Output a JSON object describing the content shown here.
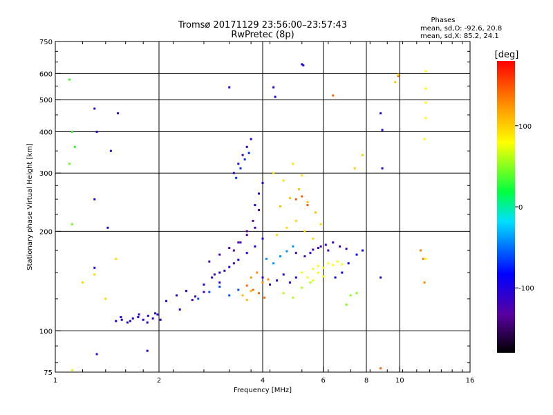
{
  "chart_data": {
    "type": "scatter",
    "title": "Tromsø 20171129 23:56:00–23:57:43",
    "subtitle": "RwPretec (8p)",
    "annotation": {
      "heading": "Phases",
      "line1": "mean, sd,O: -92.6, 20.8",
      "line2": "mean, sd,X:  85.2, 24.1"
    },
    "xlabel": "Frequency [MHz]",
    "ylabel": "Stationary phase Virtual Height [km]",
    "x_scale": "log",
    "y_scale": "log",
    "xlim": [
      1,
      16
    ],
    "ylim": [
      75,
      750
    ],
    "x_ticks": [
      1,
      2,
      4,
      6,
      8,
      10,
      16
    ],
    "x_grid": [
      2,
      4,
      6,
      8,
      10
    ],
    "y_ticks": [
      75,
      100,
      200,
      300,
      400,
      500,
      600,
      750
    ],
    "y_grid": [
      100,
      200,
      300,
      400,
      500,
      600
    ],
    "grid": true,
    "colorbar": {
      "label": "[deg]",
      "range": [
        -180,
        180
      ],
      "ticks": [
        100,
        0,
        -100
      ],
      "colormap": "rainbow: black-purple-blue-cyan-green-yellow-orange-red"
    },
    "point_groups": [
      {
        "x": [
          1.5,
          1.56,
          1.62,
          1.68,
          1.74,
          1.8,
          1.86,
          1.92,
          1.98
        ],
        "y": [
          107,
          108,
          106,
          109,
          110,
          108,
          111,
          109,
          112
        ],
        "phase": -100
      },
      {
        "x": [
          1.55,
          1.65,
          1.75,
          1.85,
          1.95,
          2.02
        ],
        "y": [
          110,
          107,
          112,
          106,
          113,
          108
        ],
        "phase": -110
      },
      {
        "x": [
          2.1,
          2.25,
          2.4,
          2.55,
          2.7,
          2.85,
          3.0
        ],
        "y": [
          123,
          128,
          132,
          127,
          138,
          145,
          140
        ],
        "phase": -105
      },
      {
        "x": [
          2.3,
          2.5,
          2.7,
          2.9,
          3.1,
          3.3
        ],
        "y": [
          116,
          124,
          131,
          148,
          152,
          160
        ],
        "phase": -120
      },
      {
        "x": [
          2.6,
          2.8,
          3.0,
          3.2,
          3.4
        ],
        "y": [
          125,
          131,
          136,
          128,
          133
        ],
        "phase": -60
      },
      {
        "x": [
          2.8,
          3.0,
          3.2,
          3.4,
          3.6,
          3.8
        ],
        "y": [
          162,
          170,
          178,
          185,
          195,
          205
        ],
        "phase": -125
      },
      {
        "x": [
          3.0,
          3.2,
          3.4,
          3.6,
          3.8,
          4.0
        ],
        "y": [
          150,
          156,
          164,
          172,
          180,
          190
        ],
        "phase": -95
      },
      {
        "x": [
          3.3,
          3.45,
          3.6,
          3.75,
          3.9
        ],
        "y": [
          175,
          185,
          200,
          215,
          232
        ],
        "phase": -130
      },
      {
        "x": [
          3.8,
          3.9,
          4.0
        ],
        "y": [
          240,
          260,
          280
        ],
        "phase": -100
      },
      {
        "x": [
          3.3,
          3.4,
          3.5,
          3.6,
          3.7
        ],
        "y": [
          300,
          320,
          340,
          360,
          380
        ],
        "phase": -105
      },
      {
        "x": [
          3.35,
          3.45,
          3.55,
          3.65
        ],
        "y": [
          290,
          310,
          330,
          345
        ],
        "phase": -70
      },
      {
        "x": [
          3.5,
          3.6,
          3.7
        ],
        "y": [
          128,
          124,
          132
        ],
        "phase": 110
      },
      {
        "x": [
          3.6,
          3.75,
          3.9,
          4.05
        ],
        "y": [
          137,
          133,
          130,
          126
        ],
        "phase": 140
      },
      {
        "x": [
          3.7,
          3.85,
          4.0,
          4.15
        ],
        "y": [
          145,
          150,
          140,
          143
        ],
        "phase": 125
      },
      {
        "x": [
          4.0,
          4.2,
          4.4,
          4.6,
          4.8,
          5.0
        ],
        "y": [
          145,
          138,
          142,
          148,
          140,
          145
        ],
        "phase": -105
      },
      {
        "x": [
          4.1,
          4.3,
          4.5,
          4.7,
          4.9
        ],
        "y": [
          165,
          160,
          168,
          174,
          180
        ],
        "phase": -40
      },
      {
        "x": [
          4.4,
          4.7,
          5.0,
          5.3,
          5.6,
          5.9
        ],
        "y": [
          195,
          205,
          215,
          200,
          190,
          210
        ],
        "phase": 95
      },
      {
        "x": [
          4.5,
          4.8,
          5.1,
          5.4,
          5.7
        ],
        "y": [
          238,
          252,
          268,
          245,
          228
        ],
        "phase": 105
      },
      {
        "x": [
          4.3,
          4.6,
          4.9,
          5.2
        ],
        "y": [
          300,
          285,
          320,
          295
        ],
        "phase": 90
      },
      {
        "x": [
          5.2,
          5.4,
          5.6,
          5.8,
          6.0
        ],
        "y": [
          150,
          145,
          142,
          150,
          146
        ],
        "phase": 75
      },
      {
        "x": [
          5.6,
          5.8,
          6.0,
          6.2,
          6.4,
          6.6,
          6.8
        ],
        "y": [
          154,
          157,
          155,
          160,
          158,
          162,
          159
        ],
        "phase": 80
      },
      {
        "x": [
          5.0,
          5.3,
          5.6,
          5.9,
          6.2
        ],
        "y": [
          172,
          168,
          176,
          180,
          175
        ],
        "phase": -120
      },
      {
        "x": [
          5.5,
          5.8,
          6.1,
          6.4,
          6.7,
          7.0
        ],
        "y": [
          172,
          178,
          182,
          185,
          180,
          177
        ],
        "phase": -110
      },
      {
        "x": [
          6.5,
          6.8,
          7.1,
          7.5,
          7.8
        ],
        "y": [
          145,
          150,
          160,
          170,
          175
        ],
        "phase": -85
      },
      {
        "x": [
          5.0,
          5.2,
          5.4
        ],
        "y": [
          250,
          255,
          240
        ],
        "phase": 145
      },
      {
        "x": [
          4.6,
          4.9,
          5.2,
          5.5
        ],
        "y": [
          130,
          126,
          135,
          140
        ],
        "phase": 60
      },
      {
        "x": [
          1.1,
          1.12,
          1.14
        ],
        "y": [
          575,
          400,
          360
        ],
        "phase": 30
      },
      {
        "x": [
          1.12,
          1.1
        ],
        "y": [
          210,
          320
        ],
        "phase": 45
      },
      {
        "x": [
          1.3,
          1.32,
          1.45,
          1.52
        ],
        "y": [
          470,
          400,
          350,
          455
        ],
        "phase": -110
      },
      {
        "x": [
          1.3,
          1.3,
          1.42
        ],
        "y": [
          250,
          155,
          205
        ],
        "phase": -95
      },
      {
        "x": [
          1.2,
          1.3,
          1.4,
          1.5
        ],
        "y": [
          140,
          148,
          125,
          165
        ],
        "phase": 95
      },
      {
        "x": [
          1.32,
          1.85
        ],
        "y": [
          85,
          87
        ],
        "phase": -115
      },
      {
        "x": [
          1.12
        ],
        "y": [
          76
        ],
        "phase": 70
      },
      {
        "x": [
          3.2,
          4.3,
          4.35,
          5.2,
          5.25
        ],
        "y": [
          545,
          545,
          510,
          640,
          635
        ],
        "phase": -100
      },
      {
        "x": [
          6.4,
          9.9
        ],
        "y": [
          515,
          590
        ],
        "phase": 140
      },
      {
        "x": [
          8.8,
          8.9,
          8.9,
          8.8
        ],
        "y": [
          455,
          405,
          310,
          145
        ],
        "phase": -105
      },
      {
        "x": [
          9.9,
          9.7
        ],
        "y": [
          595,
          565
        ],
        "phase": 100
      },
      {
        "x": [
          11.9,
          11.9,
          11.9,
          11.9,
          11.8,
          11.9
        ],
        "y": [
          610,
          540,
          490,
          440,
          380,
          165
        ],
        "phase": 80
      },
      {
        "x": [
          11.5,
          11.7,
          11.8
        ],
        "y": [
          175,
          165,
          140
        ],
        "phase": 130
      },
      {
        "x": [
          7.8,
          7.4
        ],
        "y": [
          340,
          310
        ],
        "phase": 100
      },
      {
        "x": [
          7.5,
          7.2,
          7.0
        ],
        "y": [
          130,
          128,
          120
        ],
        "phase": 50
      },
      {
        "x": [
          8.8
        ],
        "y": [
          77
        ],
        "phase": 140
      }
    ]
  }
}
